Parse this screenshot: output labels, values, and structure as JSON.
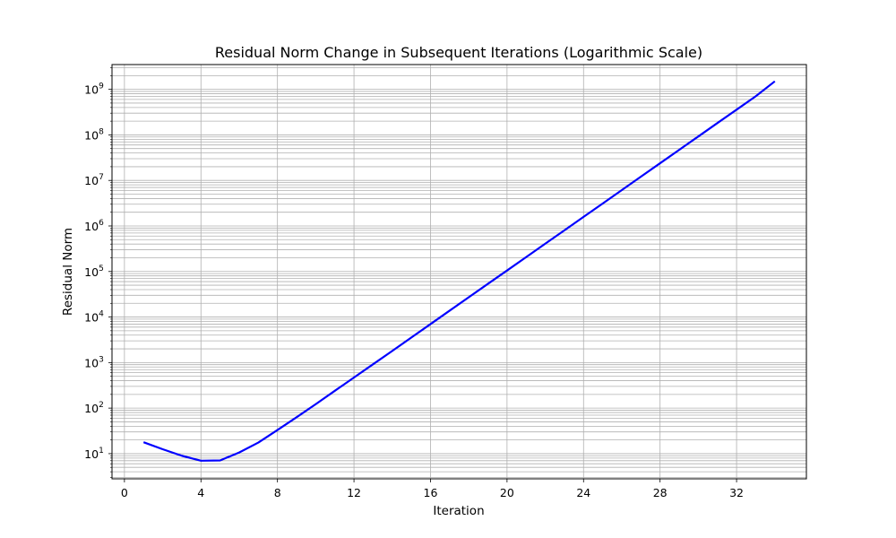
{
  "chart_data": {
    "type": "line",
    "title": "Residual Norm Change in Subsequent Iterations (Logarithmic Scale)",
    "xlabel": "Iteration",
    "ylabel": "Residual Norm",
    "xlim": [
      -0.65,
      35.65
    ],
    "ylim": [
      2.8,
      3500000000.0
    ],
    "yscale": "log",
    "grid": "major and minor, both axes",
    "x_ticks": [
      0,
      4,
      8,
      12,
      16,
      20,
      24,
      28,
      32
    ],
    "x_tick_labels": [
      "0",
      "4",
      "8",
      "12",
      "16",
      "20",
      "24",
      "28",
      "32"
    ],
    "y_ticks": [
      10,
      100,
      1000,
      10000,
      100000,
      1000000,
      10000000,
      100000000,
      1000000000
    ],
    "y_tick_exponents": [
      "1",
      "2",
      "3",
      "4",
      "5",
      "6",
      "7",
      "8",
      "9"
    ],
    "y_tick_base": "10",
    "series": [
      {
        "color": "#0000ff",
        "x": [
          1,
          2,
          3,
          4,
          5,
          6,
          7,
          8,
          9,
          10,
          11,
          12,
          13,
          14,
          15,
          16,
          17,
          18,
          19,
          20,
          21,
          22,
          23,
          24,
          25,
          26,
          27,
          28,
          29,
          30,
          31,
          32,
          33,
          34
        ],
        "y": [
          17.8,
          12.5,
          9.0,
          7.0,
          7.1,
          10.6,
          17.5,
          33,
          63,
          122,
          240,
          470,
          920,
          1800,
          3550,
          7000,
          13800,
          27200,
          53500,
          105000,
          207000,
          408000,
          802000,
          1580000,
          3110000,
          6130000,
          12100000,
          23800000,
          46900000,
          92300000,
          182000000,
          358000000,
          705000000,
          1500000000
        ]
      }
    ]
  }
}
